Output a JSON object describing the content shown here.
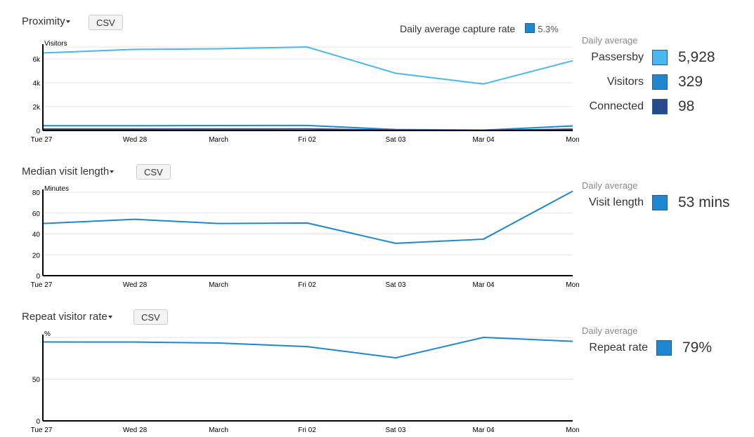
{
  "proximity": {
    "title": "Proximity",
    "csv_label": "CSV",
    "capture_label": "Daily average capture rate",
    "capture_value": "5.3%",
    "daily_label": "Daily average",
    "stats": [
      {
        "label": "Passersby",
        "value": "5,928",
        "color": "#49b8ee"
      },
      {
        "label": "Visitors",
        "value": "329",
        "color": "#1f87d0"
      },
      {
        "label": "Connected",
        "value": "98",
        "color": "#284b8c"
      }
    ]
  },
  "visit_length": {
    "title": "Median visit length",
    "csv_label": "CSV",
    "daily_label": "Daily average",
    "stats": [
      {
        "label": "Visit length",
        "value": "53 mins",
        "color": "#1f87d0"
      }
    ]
  },
  "repeat": {
    "title": "Repeat visitor rate",
    "csv_label": "CSV",
    "daily_label": "Daily average",
    "stats": [
      {
        "label": "Repeat rate",
        "value": "79%",
        "color": "#1f87d0"
      }
    ]
  },
  "chart_data": [
    {
      "type": "line",
      "ylabel": "Visitors",
      "ylim": [
        0,
        7000
      ],
      "yticks": [
        0,
        2000,
        4000,
        6000
      ],
      "ytick_labels": [
        "0",
        "2k",
        "4k",
        "6k"
      ],
      "xtick_labels": [
        "Tue 27",
        "Wed 28",
        "March",
        "Fri 02",
        "Sat 03",
        "Mar 04",
        "Mon"
      ],
      "x": [
        0,
        1,
        2,
        3,
        4,
        5,
        6
      ],
      "series": [
        {
          "name": "Passersby",
          "color": "#49b8ee",
          "values": [
            6500,
            6800,
            6850,
            7000,
            4800,
            3900,
            5850
          ]
        },
        {
          "name": "Visitors",
          "color": "#1f87d0",
          "values": [
            400,
            400,
            410,
            420,
            80,
            30,
            380
          ]
        },
        {
          "name": "Connected",
          "color": "#284b8c",
          "values": [
            120,
            120,
            125,
            130,
            30,
            10,
            110
          ]
        }
      ]
    },
    {
      "type": "line",
      "ylabel": "Minutes",
      "ylim": [
        0,
        80
      ],
      "yticks": [
        0,
        20,
        40,
        60,
        80
      ],
      "ytick_labels": [
        "0",
        "20",
        "40",
        "60",
        "80"
      ],
      "xtick_labels": [
        "Tue 27",
        "Wed 28",
        "March",
        "Fri 02",
        "Sat 03",
        "Mar 04",
        "Mon"
      ],
      "x": [
        0,
        1,
        2,
        3,
        4,
        5,
        6
      ],
      "series": [
        {
          "name": "Visit length",
          "color": "#1f87d0",
          "values": [
            50,
            54,
            50,
            50.5,
            31,
            35,
            81
          ]
        }
      ]
    },
    {
      "type": "line",
      "ylabel": "%",
      "ylim": [
        0,
        100
      ],
      "yticks": [
        0,
        50
      ],
      "ytick_labels": [
        "0",
        "50"
      ],
      "xtick_labels": [
        "Tue 27",
        "Wed 28",
        "March",
        "Fri 02",
        "Sat 03",
        "Mar 04",
        "Mon"
      ],
      "x": [
        0,
        1,
        2,
        3,
        4,
        5,
        6
      ],
      "series": [
        {
          "name": "Repeat rate",
          "color": "#1f87d0",
          "values": [
            94.5,
            94.4,
            93.3,
            89,
            75.5,
            100,
            95.3
          ]
        }
      ]
    }
  ]
}
